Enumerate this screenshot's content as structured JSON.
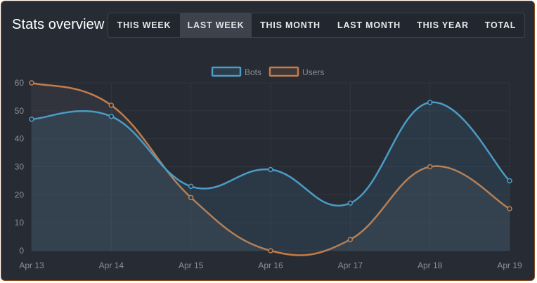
{
  "header": {
    "title": "Stats overview"
  },
  "tabs": [
    {
      "label": "THIS WEEK",
      "active": false
    },
    {
      "label": "LAST WEEK",
      "active": true
    },
    {
      "label": "THIS MONTH",
      "active": false
    },
    {
      "label": "LAST MONTH",
      "active": false
    },
    {
      "label": "THIS YEAR",
      "active": false
    },
    {
      "label": "TOTAL",
      "active": false
    }
  ],
  "colors": {
    "card_background": "#272b34",
    "card_border": "#8a4a1c",
    "bots": "#4a9cc5",
    "users": "#c47c48",
    "axis_text": "#8a8f98",
    "grid": "#313640"
  },
  "chart_data": {
    "type": "area",
    "categories": [
      "Apr 13",
      "Apr 14",
      "Apr 15",
      "Apr 16",
      "Apr 17",
      "Apr 18",
      "Apr 19"
    ],
    "series": [
      {
        "name": "Bots",
        "values": [
          47,
          48,
          23,
          29,
          17,
          53,
          25
        ],
        "color": "#4a9cc5"
      },
      {
        "name": "Users",
        "values": [
          60,
          52,
          19,
          0,
          4,
          30,
          15
        ],
        "color": "#c47c48"
      }
    ],
    "ylim": [
      0,
      60
    ],
    "yticks": [
      0,
      10,
      20,
      30,
      40,
      50,
      60
    ],
    "grid": true,
    "legend_position": "top-center"
  }
}
